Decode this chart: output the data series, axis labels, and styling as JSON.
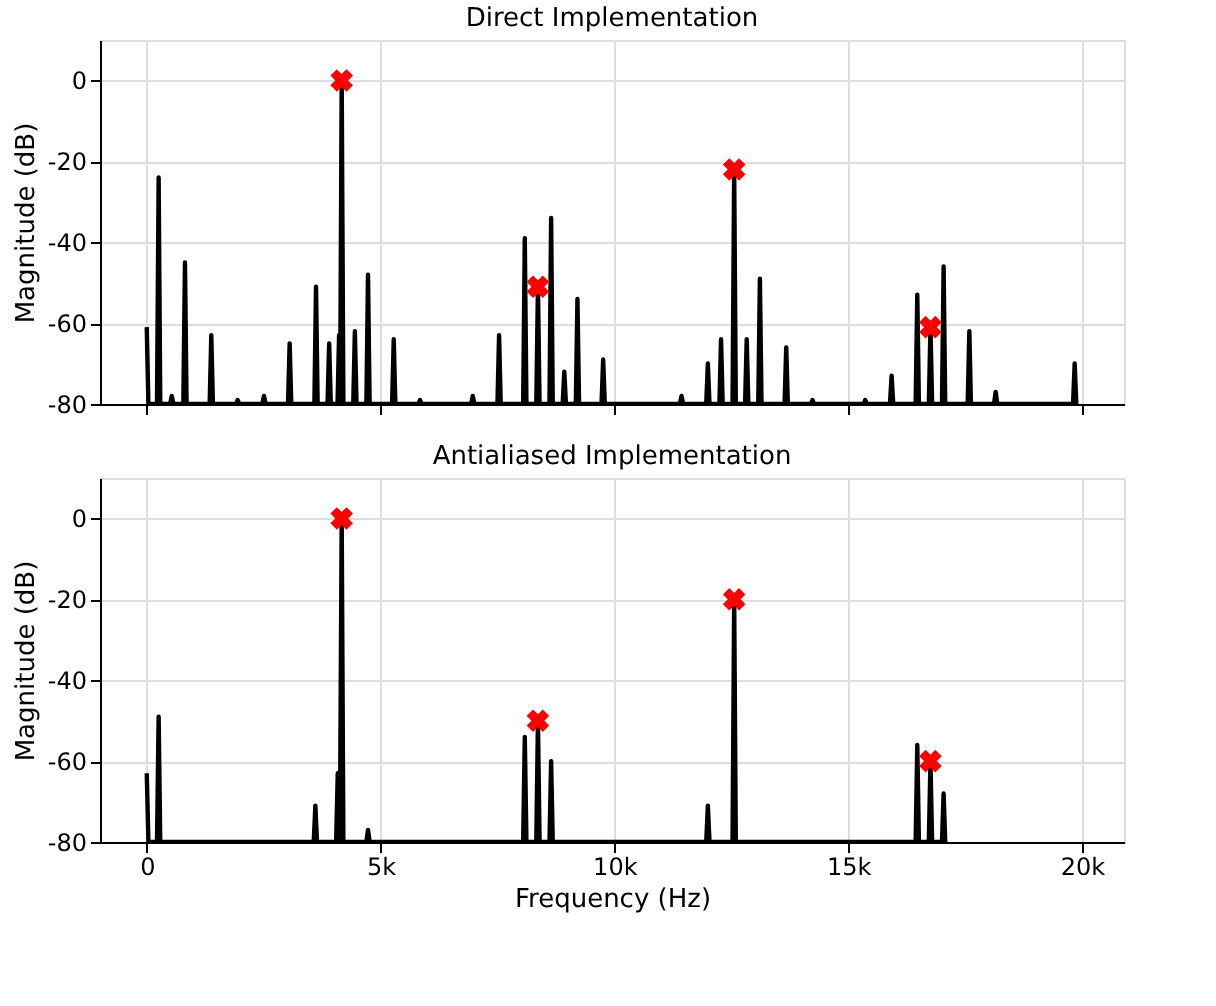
{
  "chart_data": [
    {
      "type": "line",
      "title": "Direct Implementation",
      "ylabel": "Magnitude (dB)",
      "xlim": [
        -1000,
        20900
      ],
      "ylim": [
        -80,
        10
      ],
      "xticks": [
        0,
        5000,
        10000,
        15000,
        20000
      ],
      "yticks": [
        -80,
        -60,
        -40,
        -20,
        0
      ],
      "grid": true,
      "tick_labels": "y",
      "series": [
        {
          "color": "#000000",
          "marker": "none",
          "line_style": "solid",
          "x": [
            0,
            35,
            219,
            254,
            289,
            500,
            535,
            570,
            782,
            817,
            852,
            1345,
            1380,
            1415,
            1909,
            1944,
            1979,
            2472,
            2507,
            2542,
            3021,
            3056,
            3091,
            3585,
            3620,
            3655,
            3866,
            3901,
            3936,
            4080,
            4113,
            4135,
            4169,
            4205,
            4416,
            4451,
            4486,
            4697,
            4732,
            4767,
            5247,
            5282,
            5317,
            5810,
            5845,
            5880,
            6937,
            6972,
            7007,
            7500,
            7535,
            7570,
            8050,
            8085,
            8120,
            8331,
            8366,
            8401,
            8613,
            8648,
            8683,
            8895,
            8930,
            8965,
            9176,
            9211,
            9246,
            9726,
            9761,
            9796,
            11402,
            11437,
            11472,
            11965,
            12000,
            12035,
            12247,
            12282,
            12317,
            12528,
            12563,
            12598,
            12796,
            12831,
            12866,
            13078,
            13113,
            13148,
            13641,
            13676,
            13711,
            14204,
            14239,
            14274,
            15331,
            15366,
            15401,
            15895,
            15930,
            15965,
            16444,
            16479,
            16514,
            16726,
            16761,
            16796,
            17007,
            17042,
            17077,
            17557,
            17592,
            17627,
            18120,
            18155,
            18190,
            19810,
            19845,
            19880
          ],
          "values": [
            -61,
            -80,
            -80,
            -24,
            -80,
            -80,
            -78,
            -80,
            -80,
            -45,
            -80,
            -80,
            -63,
            -80,
            -80,
            -79,
            -80,
            -80,
            -78,
            -80,
            -80,
            -65,
            -80,
            -80,
            -51,
            -80,
            -80,
            -65,
            -80,
            -80,
            -63,
            -80,
            0,
            -80,
            -80,
            -62,
            -80,
            -80,
            -48,
            -80,
            -80,
            -64,
            -80,
            -80,
            -79,
            -80,
            -80,
            -78,
            -80,
            -80,
            -63,
            -80,
            -80,
            -39,
            -80,
            -80,
            -51,
            -80,
            -80,
            -34,
            -80,
            -80,
            -72,
            -80,
            -80,
            -54,
            -80,
            -80,
            -69,
            -80,
            -80,
            -78,
            -80,
            -80,
            -70,
            -80,
            -80,
            -64,
            -80,
            -80,
            -22,
            -80,
            -80,
            -64,
            -80,
            -80,
            -49,
            -80,
            -80,
            -66,
            -80,
            -80,
            -79,
            -80,
            -80,
            -79,
            -80,
            -80,
            -73,
            -80,
            -80,
            -53,
            -80,
            -80,
            -61,
            -80,
            -80,
            -46,
            -80,
            -80,
            -62,
            -80,
            -80,
            -77,
            -80,
            -80,
            -70,
            -80
          ]
        },
        {
          "type": "scatter",
          "color": "#ff0000",
          "marker": "cross",
          "x": [
            4169,
            8366,
            12563,
            16761
          ],
          "values": [
            0,
            -51,
            -22,
            -61
          ]
        }
      ]
    },
    {
      "type": "line",
      "title": "Antialiased Implementation",
      "xlabel": "Frequency (Hz)",
      "ylabel": "Magnitude (dB)",
      "xlim": [
        -1000,
        20900
      ],
      "ylim": [
        -80,
        10
      ],
      "xticks": [
        0,
        {
          "value": 5000,
          "label": "5k"
        },
        {
          "value": 10000,
          "label": "10k"
        },
        {
          "value": 15000,
          "label": "15k"
        },
        {
          "value": 20000,
          "label": "20k"
        }
      ],
      "yticks": [
        -80,
        -60,
        -40,
        -20,
        0
      ],
      "grid": true,
      "series": [
        {
          "color": "#000000",
          "marker": "none",
          "line_style": "solid",
          "x": [
            0,
            35,
            219,
            254,
            289,
            3571,
            3606,
            3641,
            4050,
            4085,
            4130,
            4169,
            4205,
            4697,
            4732,
            4767,
            8050,
            8085,
            8120,
            8331,
            8366,
            8401,
            8613,
            8648,
            8683,
            11965,
            12000,
            12035,
            12528,
            12563,
            12598,
            16444,
            16479,
            16514,
            16726,
            16761,
            16796,
            17007,
            17042,
            17077
          ],
          "values": [
            -63,
            -80,
            -80,
            -49,
            -80,
            -80,
            -71,
            -80,
            -80,
            -63,
            -80,
            0,
            -80,
            -80,
            -77,
            -80,
            -80,
            -54,
            -80,
            -80,
            -50,
            -80,
            -80,
            -60,
            -80,
            -80,
            -71,
            -80,
            -80,
            -20,
            -80,
            -80,
            -56,
            -80,
            -80,
            -60,
            -80,
            -80,
            -68,
            -80
          ]
        },
        {
          "type": "scatter",
          "color": "#ff0000",
          "marker": "cross",
          "x": [
            4169,
            8366,
            12563,
            16761
          ],
          "values": [
            0,
            -50,
            -20,
            -60
          ]
        }
      ]
    }
  ]
}
